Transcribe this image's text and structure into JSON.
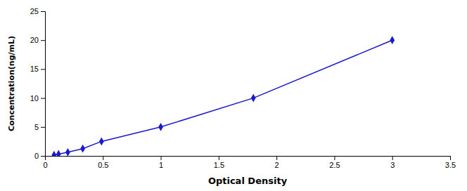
{
  "chart_data": {
    "type": "line",
    "x": [
      0.078,
      0.117,
      0.197,
      0.326,
      0.488,
      1.0,
      1.8,
      3.0
    ],
    "values": [
      0.156,
      0.313,
      0.625,
      1.25,
      2.5,
      5.0,
      10.0,
      20.0
    ],
    "color": "#1a1acd",
    "marker": "diamond",
    "line_style": "solid",
    "xlabel": "Optical Density",
    "ylabel": "Concentration(ng/mL)",
    "xlim": [
      0,
      3.5
    ],
    "ylim": [
      0,
      25
    ],
    "xticks": [
      0,
      0.5,
      1,
      1.5,
      2,
      2.5,
      3,
      3.5
    ],
    "yticks": [
      0,
      5,
      10,
      15,
      20,
      25
    ],
    "grid": false
  }
}
